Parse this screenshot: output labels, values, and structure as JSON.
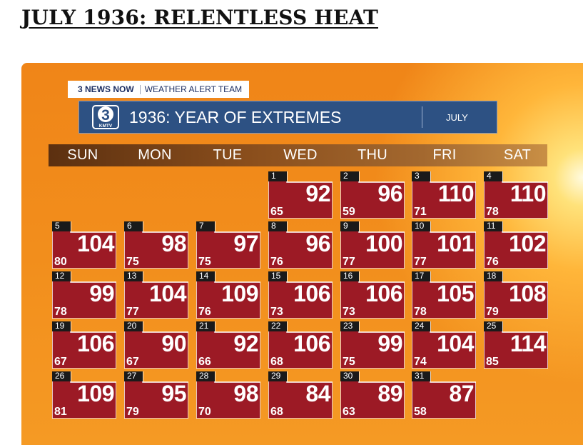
{
  "heading": "JULY 1936: RELENTLESS HEAT",
  "graphic": {
    "news_brand": "3 NEWS NOW",
    "news_team": "WEATHER ALERT TEAM",
    "logo": {
      "number": "3",
      "call_letters": "KMTV"
    },
    "title": "1936: YEAR OF EXTREMES",
    "month": "JULY"
  },
  "weekdays": [
    "SUN",
    "MON",
    "TUE",
    "WED",
    "THU",
    "FRI",
    "SAT"
  ],
  "colors": {
    "cell": "#9c1a25",
    "title_bar": "#2d5183",
    "background": "#f28e1c"
  },
  "days": [
    {
      "day": "1",
      "high": "92",
      "low": "65"
    },
    {
      "day": "2",
      "high": "96",
      "low": "59"
    },
    {
      "day": "3",
      "high": "110",
      "low": "71"
    },
    {
      "day": "4",
      "high": "110",
      "low": "78"
    },
    {
      "day": "5",
      "high": "104",
      "low": "80"
    },
    {
      "day": "6",
      "high": "98",
      "low": "75"
    },
    {
      "day": "7",
      "high": "97",
      "low": "75"
    },
    {
      "day": "8",
      "high": "96",
      "low": "76"
    },
    {
      "day": "9",
      "high": "100",
      "low": "77"
    },
    {
      "day": "10",
      "high": "101",
      "low": "77"
    },
    {
      "day": "11",
      "high": "102",
      "low": "76"
    },
    {
      "day": "12",
      "high": "99",
      "low": "78"
    },
    {
      "day": "13",
      "high": "104",
      "low": "77"
    },
    {
      "day": "14",
      "high": "109",
      "low": "76"
    },
    {
      "day": "15",
      "high": "106",
      "low": "73"
    },
    {
      "day": "16",
      "high": "106",
      "low": "73"
    },
    {
      "day": "17",
      "high": "105",
      "low": "78"
    },
    {
      "day": "18",
      "high": "108",
      "low": "79"
    },
    {
      "day": "19",
      "high": "106",
      "low": "67"
    },
    {
      "day": "20",
      "high": "90",
      "low": "67"
    },
    {
      "day": "21",
      "high": "92",
      "low": "66"
    },
    {
      "day": "22",
      "high": "106",
      "low": "68"
    },
    {
      "day": "23",
      "high": "99",
      "low": "75"
    },
    {
      "day": "24",
      "high": "104",
      "low": "74"
    },
    {
      "day": "25",
      "high": "114",
      "low": "85"
    },
    {
      "day": "26",
      "high": "109",
      "low": "81"
    },
    {
      "day": "27",
      "high": "95",
      "low": "79"
    },
    {
      "day": "28",
      "high": "98",
      "low": "70"
    },
    {
      "day": "29",
      "high": "84",
      "low": "68"
    },
    {
      "day": "30",
      "high": "89",
      "low": "63"
    },
    {
      "day": "31",
      "high": "87",
      "low": "58"
    }
  ]
}
